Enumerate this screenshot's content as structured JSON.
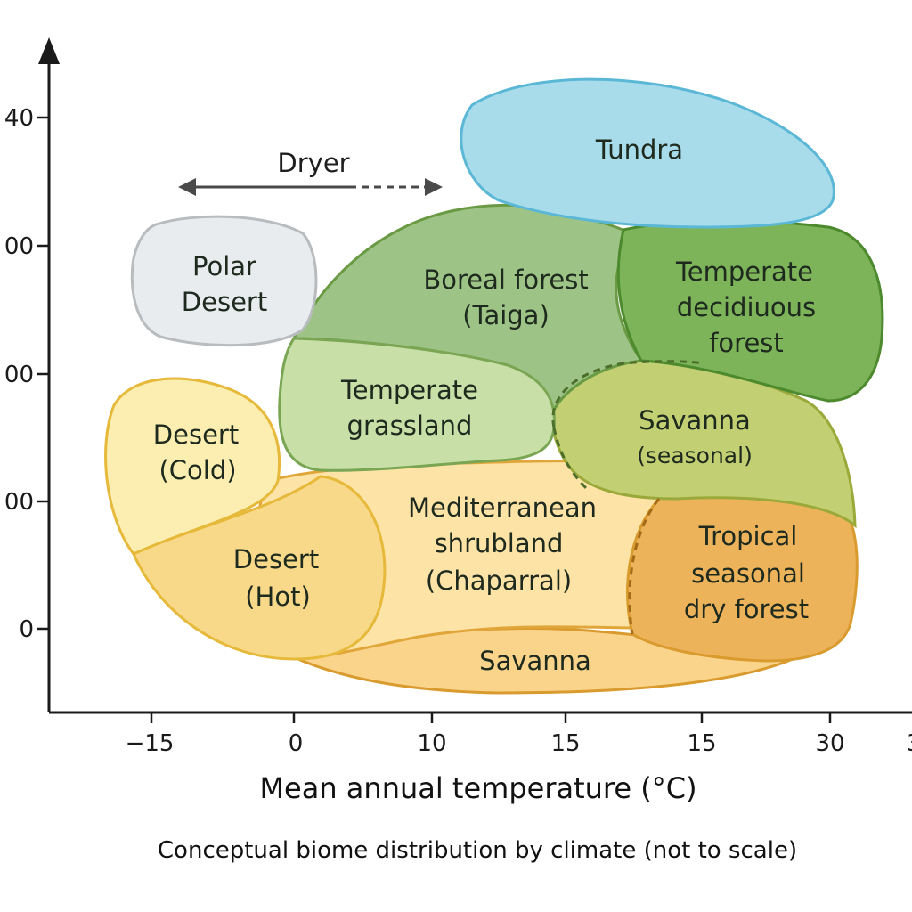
{
  "y_axis": {
    "ticks": [
      "40",
      "00",
      "00",
      "00",
      "0"
    ]
  },
  "x_axis": {
    "ticks": [
      "−15",
      "0",
      "10",
      "15",
      "15",
      "30",
      "3"
    ],
    "title": "Mean annual temperature (°C)"
  },
  "dryer": {
    "label": "Dryer"
  },
  "caption": "Conceptual biome distribution by climate (not to scale)",
  "colors": {
    "tundra": "#a9dcea",
    "polar_desert": "#e9ecee",
    "boreal": "#9dc486",
    "temperate_deciduous": "#7db45a",
    "temperate_grassland": "#c8e0a7",
    "savanna_seasonal": "#c2cf72",
    "desert_cold": "#fbeeb0",
    "desert_hot": "#f8d98a",
    "mediterranean": "#fde3a6",
    "tropical_dry": "#ecb35b",
    "savanna": "#fad48a"
  },
  "biomes": {
    "tundra": "Tundra",
    "polar_desert": [
      "Polar",
      "Desert"
    ],
    "boreal": [
      "Boreal forest",
      "(Taiga)"
    ],
    "temperate_deciduous": [
      "Temperate",
      "decidiuous",
      "forest"
    ],
    "temperate_grassland": [
      "Temperate",
      "grassland"
    ],
    "savanna_seasonal": [
      "Savanna",
      "(seasonal)"
    ],
    "desert_cold": [
      "Desert",
      "(Cold)"
    ],
    "desert_hot": [
      "Desert",
      "(Hot)"
    ],
    "mediterranean": [
      "Mediterranean",
      "shrubland",
      "(Chaparral)"
    ],
    "tropical_dry": [
      "Tropical",
      "seasonal",
      "dry forest"
    ],
    "savanna": "Savanna"
  }
}
